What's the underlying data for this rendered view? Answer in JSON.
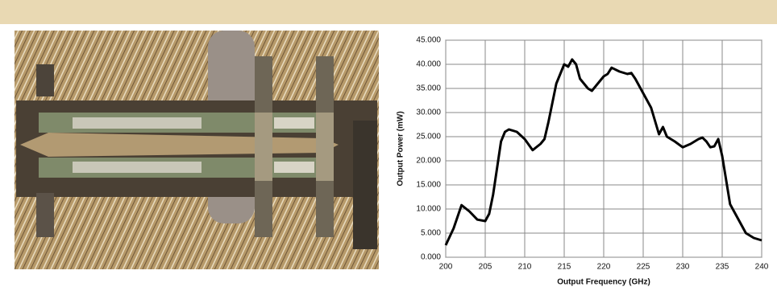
{
  "chart_data": {
    "type": "line",
    "x_label": "Output Frequency (GHz)",
    "y_label": "Output Power  (mW)",
    "x": [
      200,
      201,
      202,
      203,
      204,
      205,
      205.5,
      206,
      207,
      207.5,
      208,
      209,
      210,
      211,
      212,
      212.5,
      213,
      214,
      215,
      215.5,
      216,
      216.5,
      217,
      218,
      218.5,
      219,
      220,
      220.5,
      221,
      222,
      223,
      223.5,
      224,
      225,
      226,
      227,
      227.5,
      228,
      229,
      230,
      231,
      232,
      232.5,
      233,
      233.5,
      234,
      234.5,
      235,
      236,
      237,
      238,
      239,
      240
    ],
    "series": [
      {
        "color": "#000000",
        "values": [
          2.5,
          6,
          10.8,
          9.5,
          7.8,
          7.5,
          9,
          13,
          24,
          26,
          26.5,
          26,
          24.5,
          22.2,
          23.5,
          24.5,
          28,
          36,
          40,
          39.5,
          41,
          40,
          37,
          35,
          34.5,
          35.5,
          37.5,
          38,
          39.3,
          38.5,
          38,
          38.2,
          37,
          34,
          31,
          25.5,
          27,
          25,
          24,
          22.8,
          23.5,
          24.5,
          24.8,
          24,
          22.8,
          23,
          24.5,
          21,
          11,
          8,
          5,
          4,
          3.5
        ]
      }
    ],
    "xlim": [
      200,
      240
    ],
    "xticks": [
      200,
      205,
      210,
      215,
      220,
      225,
      230,
      235,
      240
    ],
    "ylim": [
      0,
      45
    ],
    "yticks": [
      {
        "value": 0,
        "label": "0.000"
      },
      {
        "value": 5,
        "label": "5.000"
      },
      {
        "value": 10,
        "label": "10.000"
      },
      {
        "value": 15,
        "label": "15.000"
      },
      {
        "value": 20,
        "label": "20.000"
      },
      {
        "value": 25,
        "label": "25.000"
      },
      {
        "value": 30,
        "label": "30.000"
      },
      {
        "value": 35,
        "label": "35.000"
      },
      {
        "value": 40,
        "label": "40.000"
      },
      {
        "value": 45,
        "label": "45.000"
      }
    ],
    "grid": true
  }
}
